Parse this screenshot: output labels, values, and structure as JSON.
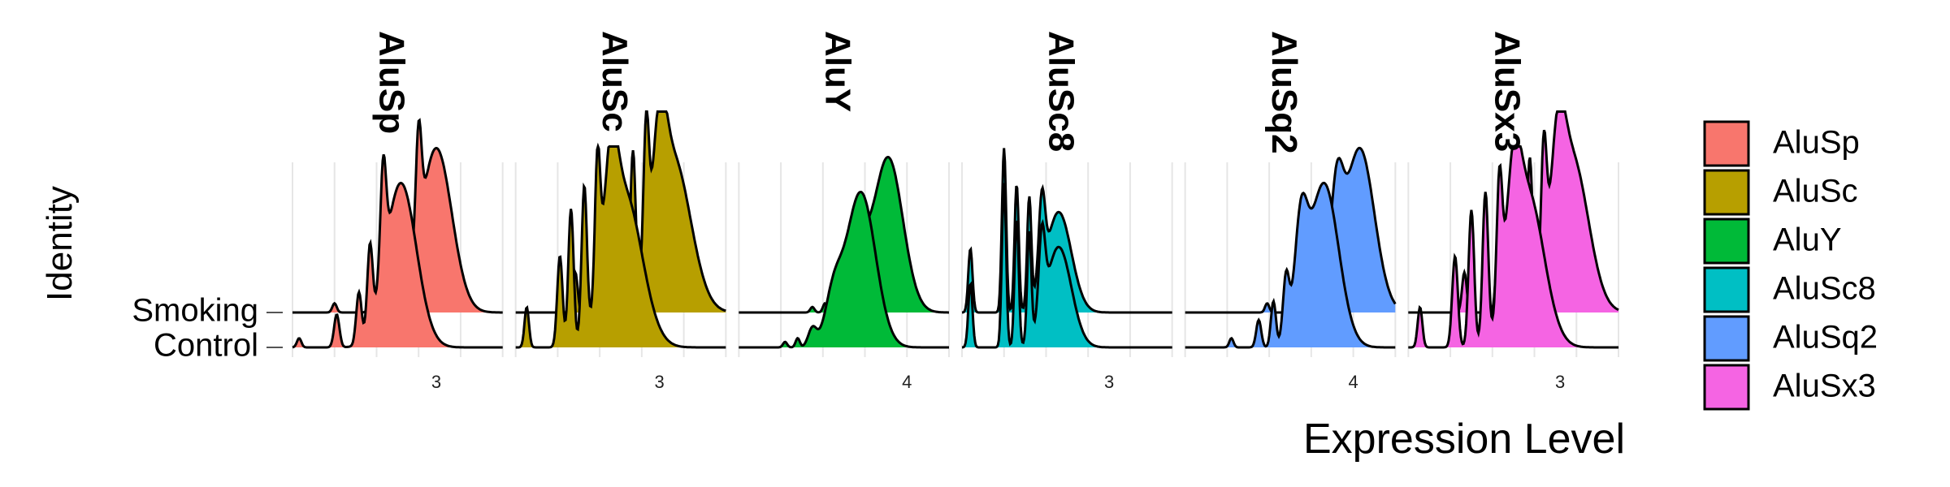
{
  "chart_data": {
    "type": "ridgeline",
    "xlabel": "Expression Level",
    "ylabel": "Identity",
    "groups": [
      "Control",
      "Smoking"
    ],
    "grid": true,
    "legend_position": "right",
    "panels": [
      {
        "name": "AluSp",
        "color": "#F8766D",
        "xlim": [
          2.35,
          3.3
        ],
        "xticks": [
          3
        ],
        "peaks": [
          [
            2.38,
            0.05,
            0.01
          ],
          [
            2.55,
            0.18,
            0.012
          ],
          [
            2.65,
            0.28,
            0.012
          ],
          [
            2.7,
            0.45,
            0.012
          ],
          [
            2.76,
            0.58,
            0.013
          ],
          [
            2.84,
            0.9,
            0.07
          ]
        ],
        "smoking_shift": 0.16
      },
      {
        "name": "AluSc",
        "color": "#B79F00",
        "xlim": [
          2.35,
          3.3
        ],
        "xticks": [
          3
        ],
        "peaks": [
          [
            2.4,
            0.22,
            0.01
          ],
          [
            2.55,
            0.5,
            0.012
          ],
          [
            2.6,
            0.75,
            0.012
          ],
          [
            2.66,
            0.82,
            0.012
          ],
          [
            2.72,
            0.76,
            0.012
          ],
          [
            2.78,
            0.55,
            0.03
          ],
          [
            2.84,
            0.85,
            0.08
          ]
        ],
        "smoking_shift": 0.22
      },
      {
        "name": "AluY",
        "color": "#00BA38",
        "xlim": [
          3.2,
          4.2
        ],
        "xticks": [
          4
        ],
        "peaks": [
          [
            3.42,
            0.03,
            0.01
          ],
          [
            3.48,
            0.05,
            0.01
          ],
          [
            3.55,
            0.1,
            0.02
          ],
          [
            3.65,
            0.25,
            0.04
          ],
          [
            3.78,
            0.85,
            0.07
          ]
        ],
        "smoking_shift": 0.13
      },
      {
        "name": "AluSc8",
        "color": "#00BFC4",
        "xlim": [
          2.3,
          3.3
        ],
        "xticks": [
          3
        ],
        "peaks": [
          [
            2.34,
            0.35,
            0.01
          ],
          [
            2.5,
            0.9,
            0.01
          ],
          [
            2.56,
            0.7,
            0.01
          ],
          [
            2.62,
            0.6,
            0.01
          ],
          [
            2.68,
            0.45,
            0.015
          ],
          [
            2.76,
            0.55,
            0.06
          ]
        ],
        "smoking_shift": 0.0
      },
      {
        "name": "AluSq2",
        "color": "#619CFF",
        "xlim": [
          3.2,
          4.2
        ],
        "xticks": [
          4
        ],
        "peaks": [
          [
            3.42,
            0.05,
            0.01
          ],
          [
            3.55,
            0.15,
            0.012
          ],
          [
            3.62,
            0.25,
            0.012
          ],
          [
            3.68,
            0.35,
            0.015
          ],
          [
            3.75,
            0.55,
            0.03
          ],
          [
            3.86,
            0.9,
            0.07
          ]
        ],
        "smoking_shift": 0.17
      },
      {
        "name": "AluSx3",
        "color": "#F564E3",
        "xlim": [
          2.35,
          3.25
        ],
        "xticks": [
          3
        ],
        "peaks": [
          [
            2.4,
            0.22,
            0.01
          ],
          [
            2.55,
            0.5,
            0.012
          ],
          [
            2.62,
            0.75,
            0.012
          ],
          [
            2.68,
            0.82,
            0.012
          ],
          [
            2.74,
            0.72,
            0.012
          ],
          [
            2.8,
            0.55,
            0.03
          ],
          [
            2.86,
            0.85,
            0.07
          ]
        ],
        "smoking_shift": 0.19
      }
    ]
  }
}
